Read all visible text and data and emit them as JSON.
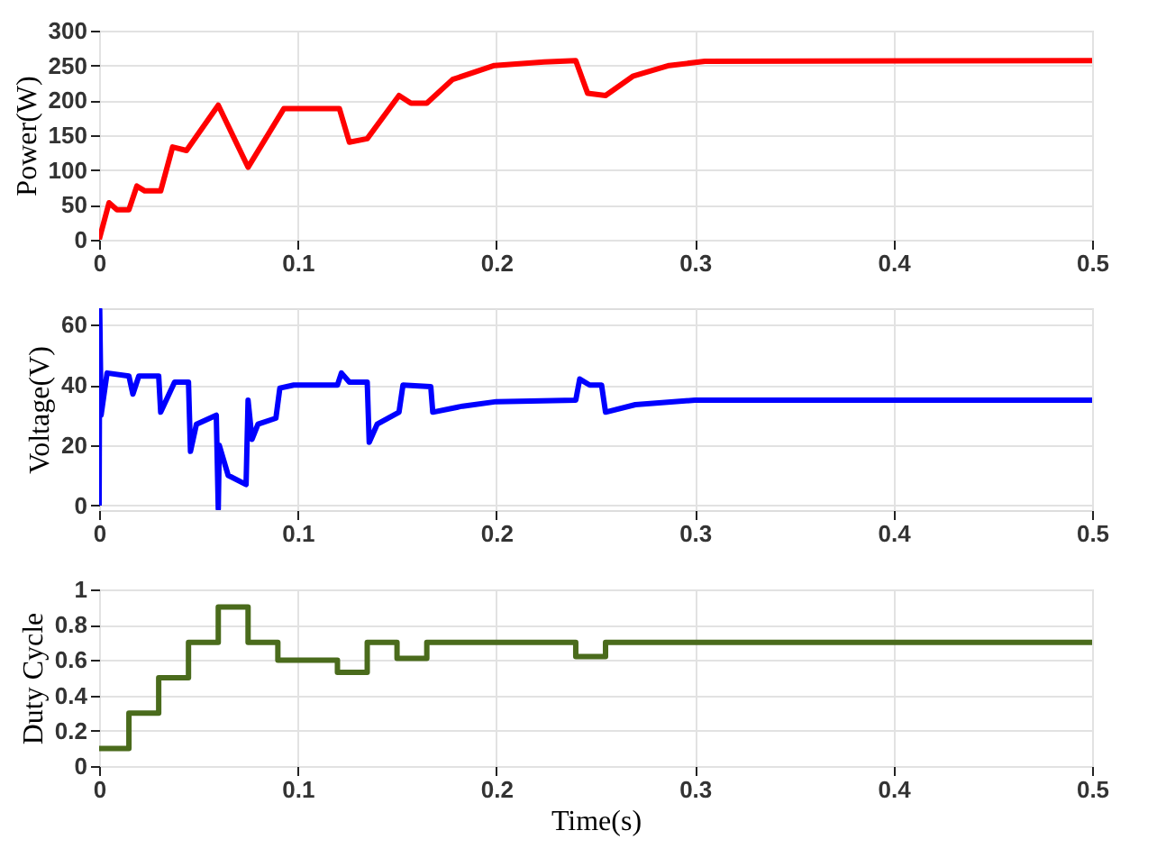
{
  "chart_data": [
    {
      "type": "line",
      "ylabel": "Power(W)",
      "xlim": [
        0,
        0.5
      ],
      "xticks": [
        0,
        0.1,
        0.2,
        0.3,
        0.4,
        0.5
      ],
      "ylim": [
        0,
        300
      ],
      "yticks": [
        0,
        50,
        100,
        150,
        200,
        250,
        300
      ],
      "grid": true,
      "series": [
        {
          "color": "#ff0000",
          "x": [
            0,
            0.005,
            0.009,
            0.015,
            0.019,
            0.023,
            0.031,
            0.037,
            0.044,
            0.06,
            0.075,
            0.093,
            0.121,
            0.126,
            0.135,
            0.151,
            0.157,
            0.165,
            0.178,
            0.199,
            0.224,
            0.24,
            0.246,
            0.255,
            0.269,
            0.287,
            0.305,
            0.5
          ],
          "values": [
            0,
            53,
            43,
            43,
            77,
            70,
            70,
            133,
            128,
            193,
            104,
            188,
            188,
            140,
            145,
            207,
            196,
            196,
            230,
            250,
            255,
            257,
            210,
            207,
            235,
            250,
            256,
            257
          ]
        }
      ]
    },
    {
      "type": "line",
      "ylabel": "Voltage(V)",
      "xlim": [
        0,
        0.5
      ],
      "xticks": [
        0,
        0.1,
        0.2,
        0.3,
        0.4,
        0.5
      ],
      "ylim": [
        -1.5,
        65.5
      ],
      "yticks": [
        0,
        20,
        40,
        60
      ],
      "grid": true,
      "series": [
        {
          "color": "#0000ff",
          "x": [
            0,
            0.0003,
            0.001,
            0.004,
            0.015,
            0.017,
            0.02,
            0.03,
            0.031,
            0.038,
            0.045,
            0.046,
            0.049,
            0.059,
            0.06,
            0.0605,
            0.065,
            0.074,
            0.075,
            0.077,
            0.08,
            0.089,
            0.091,
            0.098,
            0.12,
            0.122,
            0.126,
            0.135,
            0.136,
            0.14,
            0.151,
            0.153,
            0.167,
            0.168,
            0.183,
            0.2,
            0.24,
            0.242,
            0.247,
            0.253,
            0.255,
            0.27,
            0.3,
            0.5
          ],
          "values": [
            0,
            65,
            30,
            44,
            43,
            37,
            43,
            43,
            31,
            41,
            41,
            18,
            27,
            30,
            -1,
            20,
            10,
            7,
            35,
            22,
            27,
            29,
            39,
            40,
            40,
            44,
            41,
            41,
            21,
            27,
            31,
            40,
            39.5,
            31,
            33,
            34.5,
            35,
            42,
            40,
            40,
            31,
            33.5,
            35,
            35
          ]
        }
      ]
    },
    {
      "type": "step",
      "ylabel": "Duty Cycle",
      "xlabel": "Time(s)",
      "xlim": [
        0,
        0.5
      ],
      "xticks": [
        0,
        0.1,
        0.2,
        0.3,
        0.4,
        0.5
      ],
      "ylim": [
        0,
        1
      ],
      "yticks": [
        0,
        0.2,
        0.4,
        0.6,
        0.8,
        1
      ],
      "grid": true,
      "series": [
        {
          "color": "#4a6b1c",
          "x": [
            0,
            0.015,
            0.03,
            0.045,
            0.06,
            0.075,
            0.09,
            0.12,
            0.135,
            0.15,
            0.165,
            0.24,
            0.255,
            0.5
          ],
          "values": [
            0.1,
            0.3,
            0.5,
            0.7,
            0.9,
            0.7,
            0.6,
            0.53,
            0.7,
            0.61,
            0.7,
            0.62,
            0.7,
            0.7
          ]
        }
      ]
    }
  ]
}
